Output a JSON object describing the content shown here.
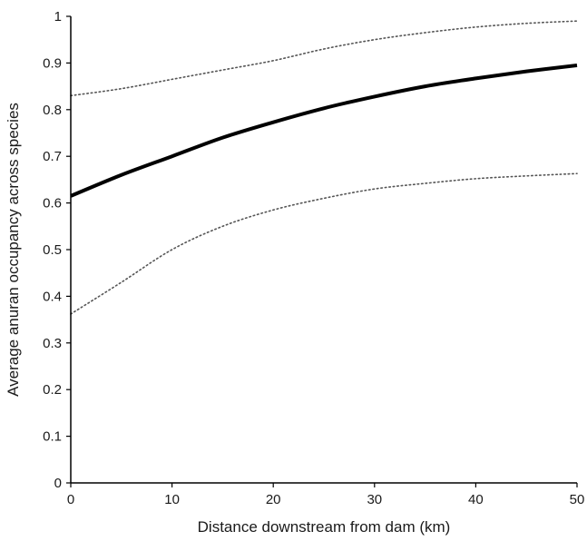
{
  "chart_data": {
    "type": "line",
    "title": "",
    "xlabel": "Distance downstream from dam (km)",
    "ylabel": "Average anuran occupancy across species",
    "xlim": [
      0,
      50
    ],
    "ylim": [
      0,
      1
    ],
    "x_ticks": [
      "0",
      "10",
      "20",
      "30",
      "40",
      "50"
    ],
    "y_ticks": [
      "0",
      "0.1",
      "0.2",
      "0.3",
      "0.4",
      "0.5",
      "0.6",
      "0.7",
      "0.8",
      "0.9",
      "1"
    ],
    "grid": false,
    "legend": "none",
    "series": [
      {
        "style": "solid",
        "color": "#000000",
        "x": [
          0,
          5,
          10,
          15,
          20,
          25,
          30,
          35,
          40,
          45,
          50
        ],
        "y": [
          0.615,
          0.66,
          0.7,
          0.74,
          0.773,
          0.803,
          0.828,
          0.85,
          0.867,
          0.882,
          0.895
        ]
      },
      {
        "style": "dotted",
        "color": "#555555",
        "x": [
          0,
          5,
          10,
          15,
          20,
          25,
          30,
          35,
          40,
          45,
          50
        ],
        "y": [
          0.83,
          0.845,
          0.865,
          0.885,
          0.905,
          0.93,
          0.95,
          0.965,
          0.977,
          0.985,
          0.99
        ]
      },
      {
        "style": "dotted",
        "color": "#555555",
        "x": [
          0,
          5,
          10,
          15,
          20,
          25,
          30,
          35,
          40,
          45,
          50
        ],
        "y": [
          0.362,
          0.43,
          0.5,
          0.55,
          0.585,
          0.61,
          0.63,
          0.642,
          0.652,
          0.658,
          0.663
        ]
      }
    ]
  }
}
